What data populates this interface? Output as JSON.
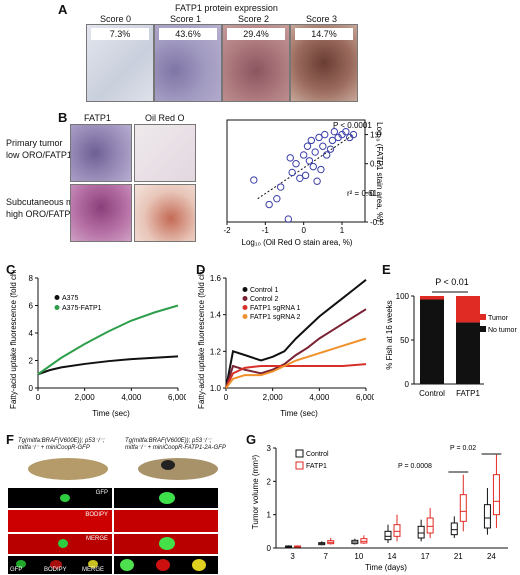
{
  "panels": {
    "A": "A",
    "B": "B",
    "C": "C",
    "D": "D",
    "E": "E",
    "F": "F",
    "G": "G"
  },
  "panelA": {
    "title": "FATP1 protein expression",
    "scores": [
      "Score 0",
      "Score 1",
      "Score 2",
      "Score 3"
    ],
    "percents": [
      "7.3%",
      "43.6%",
      "29.4%",
      "14.7%"
    ],
    "colors": [
      "#d9dde6",
      "#9c92b8",
      "#a9747a",
      "#8a5a52"
    ]
  },
  "panelB": {
    "col_fatp1": "FATP1",
    "col_oro": "Oil Red O",
    "row1": [
      "Primary tumor",
      "low ORO/FATP1"
    ],
    "row2": [
      "Subcutaneous met",
      "high ORO/FATP1"
    ]
  },
  "panelF": {
    "geno1_line1": "Tg(mitfa:BRAF(V600E)); p53⁻/⁻;",
    "geno1_line2": "mitfa⁻/⁻ + miniCoopR-GFP",
    "geno2_line1": "Tg(mitfa:BRAF(V600E)); p53⁻/⁻;",
    "geno2_line2": "mitfa⁻/⁻ + miniCoopR-FATP1-2A-GFP",
    "gfp": "GFP",
    "bodipy": "BODIPY",
    "merge": "MERGE"
  },
  "chart_data": [
    {
      "panel": "B",
      "type": "scatter",
      "xlabel": "Log₁₀ (Oil Red O stain area, %)",
      "ylabel": "Log₁₀ (FATP1 stain area, %)",
      "xlim": [
        -2,
        1.6
      ],
      "ylim": [
        -0.5,
        1.25
      ],
      "xticks": [
        -2,
        -1,
        0,
        1
      ],
      "yticks": [
        -0.5,
        0,
        0.5,
        1.0
      ],
      "ytick_labels": [
        "-0.5",
        "0",
        "0.5",
        "1.0"
      ],
      "annotation_p": "P < 0.0001",
      "annotation_r2": "r² = 0.61",
      "points": [
        [
          -1.3,
          0.22
        ],
        [
          -0.9,
          -0.2
        ],
        [
          -0.7,
          -0.1
        ],
        [
          -0.6,
          0.1
        ],
        [
          -0.4,
          -0.45
        ],
        [
          -0.35,
          0.6
        ],
        [
          -0.3,
          0.35
        ],
        [
          -0.2,
          0.5
        ],
        [
          -0.1,
          0.25
        ],
        [
          0,
          0.65
        ],
        [
          0.05,
          0.3
        ],
        [
          0.1,
          0.8
        ],
        [
          0.15,
          0.55
        ],
        [
          0.2,
          0.9
        ],
        [
          0.3,
          0.7
        ],
        [
          0.35,
          0.2
        ],
        [
          0.4,
          0.95
        ],
        [
          0.5,
          0.8
        ],
        [
          0.55,
          1.0
        ],
        [
          0.6,
          0.65
        ],
        [
          0.7,
          0.75
        ],
        [
          0.75,
          0.9
        ],
        [
          0.8,
          1.05
        ],
        [
          0.9,
          0.95
        ],
        [
          1.0,
          1.0
        ],
        [
          1.1,
          1.05
        ],
        [
          1.2,
          0.95
        ],
        [
          1.3,
          1.0
        ],
        [
          0.45,
          0.4
        ],
        [
          0.25,
          0.45
        ]
      ],
      "fit": [
        [
          -1.2,
          -0.1
        ],
        [
          1.3,
          1.0
        ]
      ],
      "color": "#3b3fa8"
    },
    {
      "panel": "C",
      "type": "line",
      "xlabel": "Time (sec)",
      "ylabel": "Fatty-acid uptake fluorescence (fold change)",
      "xlim": [
        0,
        6000
      ],
      "ylim": [
        0,
        8
      ],
      "xticks": [
        0,
        2000,
        4000,
        6000
      ],
      "xtick_labels": [
        "0",
        "2,000",
        "4,000",
        "6,000"
      ],
      "yticks": [
        0,
        2,
        4,
        6,
        8
      ],
      "series": [
        {
          "name": "A375",
          "color": "#111111",
          "x": [
            0,
            500,
            1000,
            2000,
            3000,
            4000,
            5000,
            6000
          ],
          "y": [
            1.0,
            1.3,
            1.5,
            1.75,
            1.95,
            2.1,
            2.2,
            2.3
          ]
        },
        {
          "name": "A375-FATP1",
          "color": "#2e9e4a",
          "x": [
            0,
            500,
            1000,
            2000,
            3000,
            4000,
            5000,
            6000
          ],
          "y": [
            1.0,
            1.6,
            2.2,
            3.2,
            4.1,
            4.9,
            5.5,
            6.0
          ]
        }
      ]
    },
    {
      "panel": "D",
      "type": "line",
      "xlabel": "Time (sec)",
      "ylabel": "Fatty-acid uptake fluorescence (fold change)",
      "xlim": [
        0,
        6000
      ],
      "ylim": [
        1.0,
        1.6
      ],
      "xticks": [
        0,
        2000,
        4000,
        6000
      ],
      "xtick_labels": [
        "0",
        "2,000",
        "4,000",
        "6,000"
      ],
      "yticks": [
        1.0,
        1.2,
        1.4,
        1.6
      ],
      "ytick_labels": [
        "1.0",
        "1.2",
        "1.4",
        "1.6"
      ],
      "series": [
        {
          "name": "Control 1",
          "color": "#111111",
          "x": [
            0,
            300,
            800,
            1500,
            2000,
            2500,
            3000,
            3500,
            4000,
            4500,
            5000,
            5500,
            6000
          ],
          "y": [
            1.0,
            1.2,
            1.18,
            1.15,
            1.17,
            1.2,
            1.27,
            1.33,
            1.39,
            1.44,
            1.49,
            1.54,
            1.59
          ]
        },
        {
          "name": "Control 2",
          "color": "#7a2233",
          "x": [
            0,
            300,
            800,
            1500,
            2000,
            2500,
            3000,
            3500,
            4000,
            4500,
            5000,
            5500,
            6000
          ],
          "y": [
            1.0,
            1.12,
            1.1,
            1.08,
            1.1,
            1.13,
            1.18,
            1.22,
            1.27,
            1.31,
            1.35,
            1.39,
            1.43
          ]
        },
        {
          "name": "FATP1 sgRNA 1",
          "color": "#d63028",
          "x": [
            0,
            300,
            800,
            1500,
            2000,
            2500,
            3000,
            4000,
            5000,
            6000
          ],
          "y": [
            1.0,
            1.08,
            1.11,
            1.12,
            1.12,
            1.12,
            1.12,
            1.12,
            1.12,
            1.13
          ]
        },
        {
          "name": "FATP1 sgRNA 2",
          "color": "#f0912b",
          "x": [
            0,
            300,
            800,
            1500,
            2000,
            2500,
            3000,
            4000,
            5000,
            6000
          ],
          "y": [
            1.0,
            1.05,
            1.07,
            1.07,
            1.09,
            1.12,
            1.15,
            1.19,
            1.23,
            1.27
          ]
        }
      ]
    },
    {
      "panel": "E",
      "type": "bar",
      "ylabel": "% Fish at 16 weeks",
      "ylim": [
        0,
        100
      ],
      "yticks": [
        0,
        50,
        100
      ],
      "categories": [
        "Control",
        "FATP1"
      ],
      "annotation_p": "P < 0.01",
      "series": [
        {
          "name": "No tumor",
          "color": "#111111",
          "values": [
            96,
            70
          ]
        },
        {
          "name": "Tumor",
          "color": "#e02a24",
          "values": [
            4,
            30
          ]
        }
      ]
    },
    {
      "panel": "G",
      "type": "box",
      "xlabel": "Time (days)",
      "ylabel": "Tumor volume (mm³)",
      "ylim": [
        0,
        3
      ],
      "yticks": [
        0,
        1,
        2,
        3
      ],
      "categories": [
        "3",
        "7",
        "10",
        "14",
        "17",
        "21",
        "24"
      ],
      "annotations": [
        "P = 0.0008",
        "P = 0.02"
      ],
      "series": [
        {
          "name": "Control",
          "color": "#111111",
          "boxes": [
            [
              0.02,
              0.03,
              0.05,
              0.06,
              0.08
            ],
            [
              0.08,
              0.1,
              0.13,
              0.16,
              0.2
            ],
            [
              0.1,
              0.13,
              0.18,
              0.23,
              0.28
            ],
            [
              0.15,
              0.25,
              0.35,
              0.5,
              0.7
            ],
            [
              0.2,
              0.3,
              0.45,
              0.65,
              0.85
            ],
            [
              0.3,
              0.4,
              0.55,
              0.75,
              0.95
            ],
            [
              0.4,
              0.6,
              0.9,
              1.3,
              1.8
            ]
          ]
        },
        {
          "name": "FATP1",
          "color": "#e02a24",
          "boxes": [
            [
              0.02,
              0.03,
              0.05,
              0.06,
              0.08
            ],
            [
              0.1,
              0.13,
              0.17,
              0.22,
              0.3
            ],
            [
              0.12,
              0.15,
              0.2,
              0.28,
              0.38
            ],
            [
              0.2,
              0.35,
              0.5,
              0.7,
              1.0
            ],
            [
              0.3,
              0.45,
              0.65,
              0.9,
              1.2
            ],
            [
              0.5,
              0.8,
              1.1,
              1.6,
              2.2
            ],
            [
              0.6,
              1.0,
              1.4,
              2.2,
              2.8
            ]
          ]
        }
      ]
    }
  ]
}
